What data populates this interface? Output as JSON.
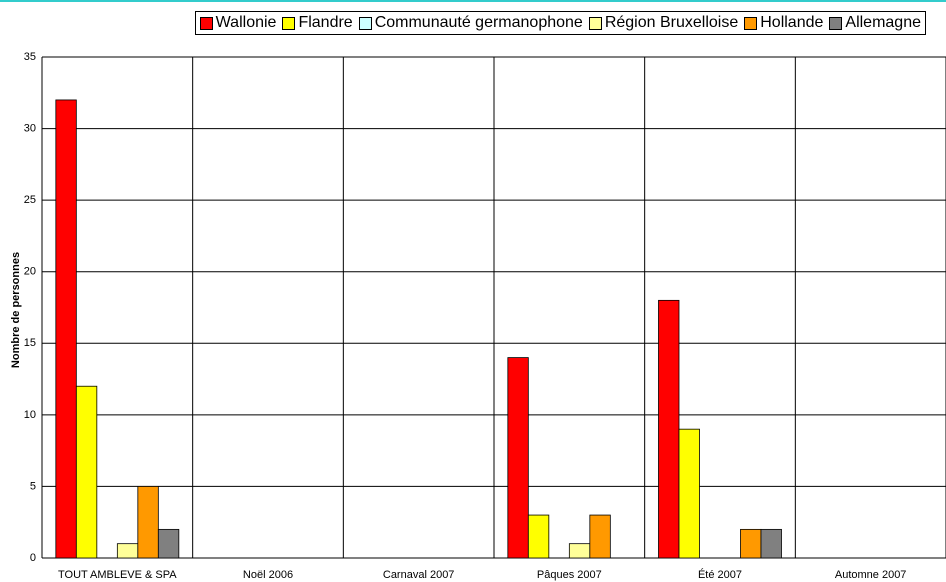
{
  "chart_data": {
    "type": "bar",
    "categories": [
      "TOUT AMBLEVE & SPA",
      "Noël 2006",
      "Carnaval 2007",
      "Pâques 2007",
      "Été 2007",
      "Automne 2007"
    ],
    "series": [
      {
        "name": "Wallonie",
        "color": "#ff0000",
        "values": [
          32,
          0,
          0,
          14,
          18,
          0
        ]
      },
      {
        "name": "Flandre",
        "color": "#ffff00",
        "values": [
          12,
          0,
          0,
          3,
          9,
          0
        ]
      },
      {
        "name": "Communauté germanophone",
        "color": "#ccffff",
        "values": [
          0,
          0,
          0,
          0,
          0,
          0
        ]
      },
      {
        "name": "Région Bruxelloise",
        "color": "#ffff99",
        "values": [
          1,
          0,
          0,
          1,
          0,
          0
        ]
      },
      {
        "name": "Hollande",
        "color": "#ff9900",
        "values": [
          5,
          0,
          0,
          3,
          2,
          0
        ]
      },
      {
        "name": "Allemagne",
        "color": "#808080",
        "values": [
          2,
          0,
          0,
          0,
          2,
          0
        ]
      }
    ],
    "y_axis_label": "Nombre de personnes",
    "ylim": [
      0,
      35
    ],
    "yticks": [
      0,
      5,
      10,
      15,
      20,
      25,
      30,
      35
    ],
    "grid": true,
    "legend": "top"
  }
}
